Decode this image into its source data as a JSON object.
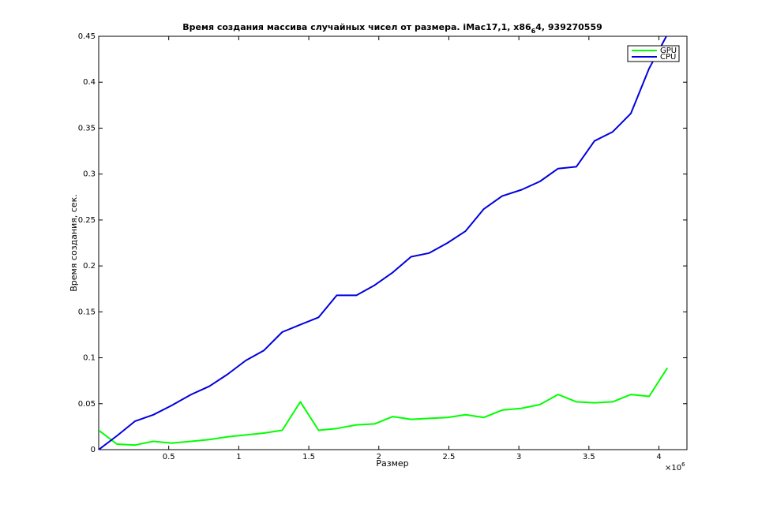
{
  "chart_data": {
    "type": "line",
    "title": "Время создания массива случайных чисел от размера. iMac17,1, x86",
    "title_subscript": "6",
    "title_suffix": "4, 939270559",
    "xlabel": "Размер",
    "ylabel": "Время создания, сек.",
    "x_exponent_label": "×10",
    "x_exponent_power": "6",
    "xlim": [
      0,
      4.2
    ],
    "ylim": [
      0,
      0.45
    ],
    "x_ticks": [
      0.5,
      1,
      1.5,
      2,
      2.5,
      3,
      3.5,
      4
    ],
    "x_tick_labels": [
      "0.5",
      "1",
      "1.5",
      "2",
      "2.5",
      "3",
      "3.5",
      "4"
    ],
    "y_ticks": [
      0,
      0.05,
      0.1,
      0.15,
      0.2,
      0.25,
      0.3,
      0.35,
      0.4,
      0.45
    ],
    "y_tick_labels": [
      "0",
      "0.05",
      "0.1",
      "0.15",
      "0.2",
      "0.25",
      "0.3",
      "0.35",
      "0.4",
      "0.45"
    ],
    "grid": false,
    "legend_position": "top-right",
    "x": [
      0.0,
      0.13,
      0.26,
      0.39,
      0.52,
      0.66,
      0.79,
      0.92,
      1.05,
      1.18,
      1.31,
      1.44,
      1.57,
      1.7,
      1.84,
      1.97,
      2.1,
      2.23,
      2.36,
      2.49,
      2.62,
      2.75,
      2.88,
      3.02,
      3.15,
      3.28,
      3.41,
      3.54,
      3.67,
      3.8,
      3.93,
      4.06
    ],
    "series": [
      {
        "name": "GPU",
        "color": "#00ff00",
        "values": [
          0.021,
          0.006,
          0.005,
          0.009,
          0.007,
          0.009,
          0.011,
          0.014,
          0.016,
          0.018,
          0.021,
          0.052,
          0.021,
          0.023,
          0.027,
          0.028,
          0.036,
          0.033,
          0.034,
          0.035,
          0.038,
          0.035,
          0.043,
          0.045,
          0.049,
          0.06,
          0.052,
          0.051,
          0.052,
          0.06,
          0.058,
          0.089
        ]
      },
      {
        "name": "CPU",
        "color": "#0000dd",
        "values": [
          0.0,
          0.015,
          0.031,
          0.038,
          0.048,
          0.06,
          0.069,
          0.082,
          0.097,
          0.108,
          0.128,
          0.136,
          0.144,
          0.168,
          0.168,
          0.179,
          0.193,
          0.21,
          0.214,
          0.225,
          0.238,
          0.262,
          0.276,
          0.283,
          0.292,
          0.306,
          0.308,
          0.336,
          0.346,
          0.366,
          0.415,
          0.452
        ]
      }
    ]
  }
}
